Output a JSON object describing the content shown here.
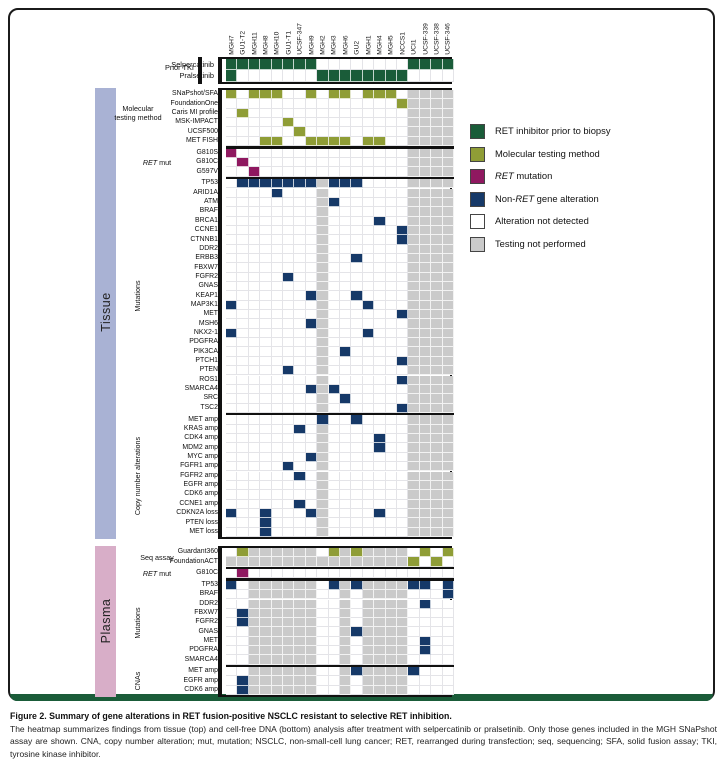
{
  "colors": {
    "G": "#1a5c39",
    "O": "#8f9d36",
    "M": "#8f1860",
    "B": "#163968",
    "W": "#ffffff",
    "X": "#cacaca",
    "tissue_bar": "#a9b2d4",
    "plasma_bar": "#d8aec8",
    "rule": "#1a5c39"
  },
  "columns": [
    "MGH7",
    "GU1-T2",
    "MGH11",
    "MGH8",
    "MGH10",
    "GU1-T1",
    "UCSF-347",
    "MGH9",
    "MGH2",
    "MGH3",
    "MGH6",
    "GU2",
    "MGH1",
    "MGH4",
    "MGH5",
    "NCCS1",
    "UCI1",
    "UCSF-339",
    "UCSF-338",
    "UCSF-346"
  ],
  "prior_tki": {
    "label": "Prior TKI",
    "rows": [
      {
        "label": "Selpercatinib",
        "cells": "GGGGGGGGWWWWWWWWGGGG"
      },
      {
        "label": "Pralsetinib",
        "cells": "GWWWWWWWGGGGGGGGWWWW"
      }
    ]
  },
  "tissue": {
    "label": "Tissue",
    "groups": [
      {
        "label": [
          {
            "t": "Molecular testing method"
          }
        ],
        "rows": [
          {
            "label": "SNaPshot/SFA",
            "cells": "OWOOOWWOWOOWOOOWXXXX"
          },
          {
            "label": "FoundationOne",
            "cells": "WWWWWWWWWWWWWWWOXXXX"
          },
          {
            "label": "Caris MI profile",
            "cells": "WOWWWWWWWWWWWWWWXXXX"
          },
          {
            "label": "MSK-IMPACT",
            "cells": "WWWWWOWWWWWWWWWWXXXX"
          },
          {
            "label": "UCSF500",
            "cells": "WWWWWWOWWWWWWWWWXXXX"
          },
          {
            "label": "MET FISH",
            "cells": "WWWOOWWOOOOWOOWWXXXX"
          }
        ]
      },
      {
        "label": [
          {
            "i": "RET"
          },
          {
            "t": " mut"
          }
        ],
        "rows": [
          {
            "label": "G810S",
            "cells": "MWWWWWWWWWWWWWWWXXXX"
          },
          {
            "label": "G810C",
            "cells": "WMWWWWWWWWWWWWWWXXXX"
          },
          {
            "label": "G597V",
            "cells": "WWMWWWWWWWWWWWWWXXXX"
          }
        ]
      },
      {
        "label": [
          {
            "t": "Mutations"
          }
        ],
        "rows": [
          {
            "label": "TP53",
            "cells": "WBBBBBBBXBBBWWWWXXXX"
          },
          {
            "label": "ARID1A",
            "cells": "WWWWBWWWXWWWWWWWXXXX"
          },
          {
            "label": "ATM",
            "cells": "WWWWWWWWXBWWWWWWXXXX"
          },
          {
            "label": "BRAF",
            "cells": "WWWWWWWWXWWWWWWWXXXX"
          },
          {
            "label": "BRCA1",
            "cells": "WWWWWWWWXWWWWBWWXXXX"
          },
          {
            "label": "CCNE1",
            "cells": "WWWWWWWWXWWWWWWBXXXX"
          },
          {
            "label": "CTNNB1",
            "cells": "WWWWWWWWXWWWWWWBXXXX"
          },
          {
            "label": "DDR2",
            "cells": "WWWWWWWWXWWWWWWWXXXX"
          },
          {
            "label": "ERBB3",
            "cells": "WWWWWWWWXWWBWWWWXXXX"
          },
          {
            "label": "FBXW7",
            "cells": "WWWWWWWWXWWWWWWWXXXX"
          },
          {
            "label": "FGFR2",
            "cells": "WWWWWBWWXWWWWWWWXXXX"
          },
          {
            "label": "GNAS",
            "cells": "WWWWWWWWXWWWWWWWXXXX"
          },
          {
            "label": "KEAP1",
            "cells": "WWWWWWWBXWWBWWWWXXXX"
          },
          {
            "label": "MAP3K1",
            "cells": "BWWWWWWWXWWWBWWWXXXX"
          },
          {
            "label": "MET",
            "cells": "WWWWWWWWXWWWWWWBXXXX"
          },
          {
            "label": "MSH6",
            "cells": "WWWWWWWBXWWWWWWWXXXX"
          },
          {
            "label": "NKX2-1",
            "cells": "BWWWWWWWXWWWBWWWXXXX"
          },
          {
            "label": "PDGFRA",
            "cells": "WWWWWWWWXWWWWWWWXXXX"
          },
          {
            "label": "PIK3CA",
            "cells": "WWWWWWWWXWBWWWWWXXXX"
          },
          {
            "label": "PTCH1",
            "cells": "WWWWWWWWXWWWWWWBXXXX"
          },
          {
            "label": "PTEN",
            "cells": "WWWWWBWWXWWWWWWWXXXX"
          },
          {
            "label": "ROS1",
            "cells": "WWWWWWWWXWWWWWWBXXXX"
          },
          {
            "label": "SMARCA4",
            "cells": "WWWWWWWBXBWWWWWWXXXX"
          },
          {
            "label": "SRC",
            "cells": "WWWWWWWWXWBWWWWWXXXX"
          },
          {
            "label": "TSC2",
            "cells": "WWWWWWWWXWWWWWWBXXXX"
          }
        ]
      },
      {
        "label": [
          {
            "t": "Copy number alterations"
          }
        ],
        "rows": [
          {
            "label": "MET amp",
            "cells": "WWWWWWWWBWWBWWWWXXXX"
          },
          {
            "label": "KRAS amp",
            "cells": "WWWWWWBWXWWWWWWWXXXX"
          },
          {
            "label": "CDK4 amp",
            "cells": "WWWWWWWWXWWWWBWWXXXX"
          },
          {
            "label": "MDM2 amp",
            "cells": "WWWWWWWWXWWWWBWWXXXX"
          },
          {
            "label": "MYC amp",
            "cells": "WWWWWWWBXWWWWWWWXXXX"
          },
          {
            "label": "FGFR1 amp",
            "cells": "WWWWWBWWXWWWWWWWXXXX"
          },
          {
            "label": "FGFR2 amp",
            "cells": "WWWWWWBWXWWWWWWWXXXX"
          },
          {
            "label": "EGFR amp",
            "cells": "WWWWWWWWXWWWWWWWXXXX"
          },
          {
            "label": "CDK6 amp",
            "cells": "WWWWWWWWXWWWWWWWXXXX"
          },
          {
            "label": "CCNE1 amp",
            "cells": "WWWWWWBWXWWWWWWWXXXX"
          },
          {
            "label": "CDKN2A loss",
            "cells": "BWWBWWWBXWWWWBWWXXXX"
          },
          {
            "label": "PTEN loss",
            "cells": "WWWBWWWWXWWWWWWWXXXX"
          },
          {
            "label": "MET loss",
            "cells": "WWWBWWWWXWWWWWWWXXXX"
          }
        ]
      }
    ]
  },
  "plasma": {
    "label": "Plasma",
    "groups": [
      {
        "label": [
          {
            "t": "Seq assay"
          }
        ],
        "rows": [
          {
            "label": "Guardant360",
            "cells": "WOXXXXXXWOXOXXXXWOWO"
          },
          {
            "label": "FoundationACT",
            "cells": "XXXXXXXXXXXXXXXXOWOW"
          }
        ]
      },
      {
        "label": [
          {
            "i": "RET"
          },
          {
            "t": " mut"
          }
        ],
        "rows": [
          {
            "label": "G810C",
            "cells": "WMWWWWWWWWWWWWWWWWWW"
          }
        ]
      },
      {
        "label": [
          {
            "t": "Mutations"
          }
        ],
        "rows": [
          {
            "label": "TP53",
            "cells": "BWXXXXXXWBXBXXXXBBWB"
          },
          {
            "label": "BRAF",
            "cells": "WWXXXXXXWWXWXXXXWWWB"
          },
          {
            "label": "DDR2",
            "cells": "WWXXXXXXWWXWXXXXWBWW"
          },
          {
            "label": "FBXW7",
            "cells": "WBXXXXXXWWXWXXXXWWWW"
          },
          {
            "label": "FGFR2",
            "cells": "WBXXXXXXWWXWXXXXWWWW"
          },
          {
            "label": "GNAS",
            "cells": "WWXXXXXXWWXBXXXXWWWW"
          },
          {
            "label": "MET",
            "cells": "WWXXXXXXWWXWXXXXWBWW"
          },
          {
            "label": "PDGFRA",
            "cells": "WWXXXXXXWWXWXXXXWBWW"
          },
          {
            "label": "SMARCA4",
            "cells": "WWXXXXXXWWXWXXXXWWWW"
          }
        ]
      },
      {
        "label": [
          {
            "t": "CNAs"
          }
        ],
        "rows": [
          {
            "label": "MET amp",
            "cells": "WWXXXXXXWWXBXXXXBWWW"
          },
          {
            "label": "EGFR amp",
            "cells": "WBXXXXXXWWXWXXXXWWWW"
          },
          {
            "label": "CDK6 amp",
            "cells": "WBXXXXXXWWXWXXXXWWWW"
          }
        ]
      }
    ]
  },
  "legend": {
    "items": [
      {
        "key": "G",
        "label": [
          {
            "t": "RET inhibitor prior to biopsy"
          }
        ]
      },
      {
        "key": "O",
        "label": [
          {
            "t": "Molecular testing method"
          }
        ]
      },
      {
        "key": "M",
        "label": [
          {
            "i": "RET"
          },
          {
            "t": " mutation"
          }
        ]
      },
      {
        "key": "B",
        "label": [
          {
            "t": "Non-"
          },
          {
            "i": "RET"
          },
          {
            "t": " gene alteration"
          }
        ]
      },
      {
        "key": "W",
        "label": [
          {
            "t": "Alteration not detected"
          }
        ]
      },
      {
        "key": "X",
        "label": [
          {
            "t": "Testing not performed"
          }
        ]
      }
    ]
  },
  "caption": {
    "title": "Figure 2. Summary of gene alterations in RET fusion-positive NSCLC resistant to selective RET inhibition.",
    "body": "The heatmap summarizes findings from tissue (top) and cell-free DNA (bottom) analysis after treatment with selpercatinib or pralsetinib. Only those genes included in the MGH SNaPshot assay are shown. CNA, copy number alteration; mut, mutation; NSCLC, non-small-cell lung cancer; RET, rearranged during transfection; seq, sequencing; SFA, solid fusion assay; TKI, tyrosine kinase inhibitor."
  }
}
